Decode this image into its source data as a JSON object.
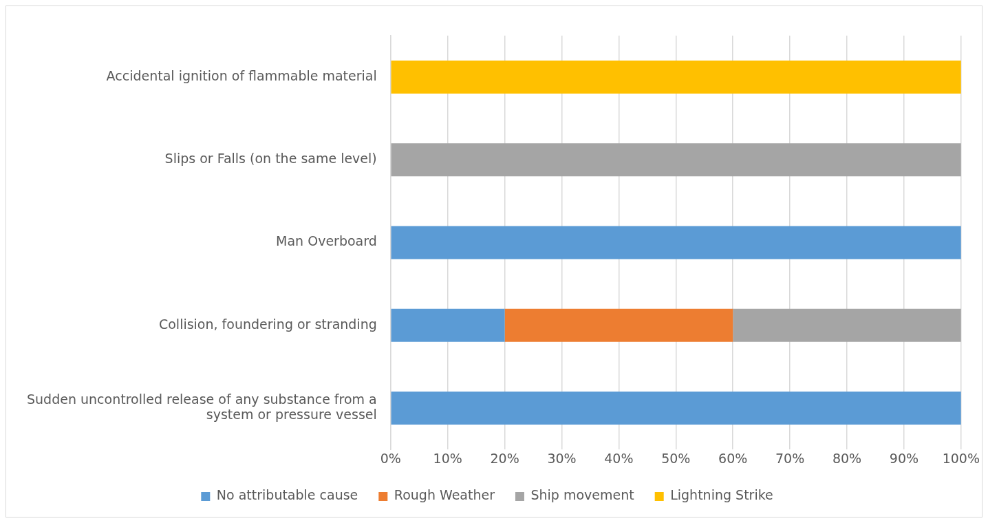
{
  "chart_data": {
    "type": "bar",
    "orientation": "horizontal",
    "stacked": true,
    "categories": [
      "Accidental ignition of flammable material",
      "Slips or Falls (on the same level)",
      "Man Overboard",
      "Collision, foundering or stranding",
      "Sudden uncontrolled release of any substance from a system or pressure vessel"
    ],
    "series": [
      {
        "name": "No attributable cause",
        "color": "#5b9bd5",
        "values": [
          0,
          0,
          100,
          20,
          100
        ]
      },
      {
        "name": "Rough Weather",
        "color": "#ed7d31",
        "values": [
          0,
          0,
          0,
          40,
          0
        ]
      },
      {
        "name": "Ship movement",
        "color": "#a5a5a5",
        "values": [
          0,
          100,
          0,
          40,
          0
        ]
      },
      {
        "name": "Lightning Strike",
        "color": "#ffc000",
        "values": [
          100,
          0,
          0,
          0,
          0
        ]
      }
    ],
    "xlim": [
      0,
      100
    ],
    "xticks": [
      {
        "value": 0,
        "label": "0%"
      },
      {
        "value": 10,
        "label": "10%"
      },
      {
        "value": 20,
        "label": "20%"
      },
      {
        "value": 30,
        "label": "30%"
      },
      {
        "value": 40,
        "label": "40%"
      },
      {
        "value": 50,
        "label": "50%"
      },
      {
        "value": 60,
        "label": "60%"
      },
      {
        "value": 70,
        "label": "70%"
      },
      {
        "value": 80,
        "label": "80%"
      },
      {
        "value": 90,
        "label": "90%"
      },
      {
        "value": 100,
        "label": "100%"
      }
    ],
    "grid": "x",
    "legend": "bottom"
  }
}
